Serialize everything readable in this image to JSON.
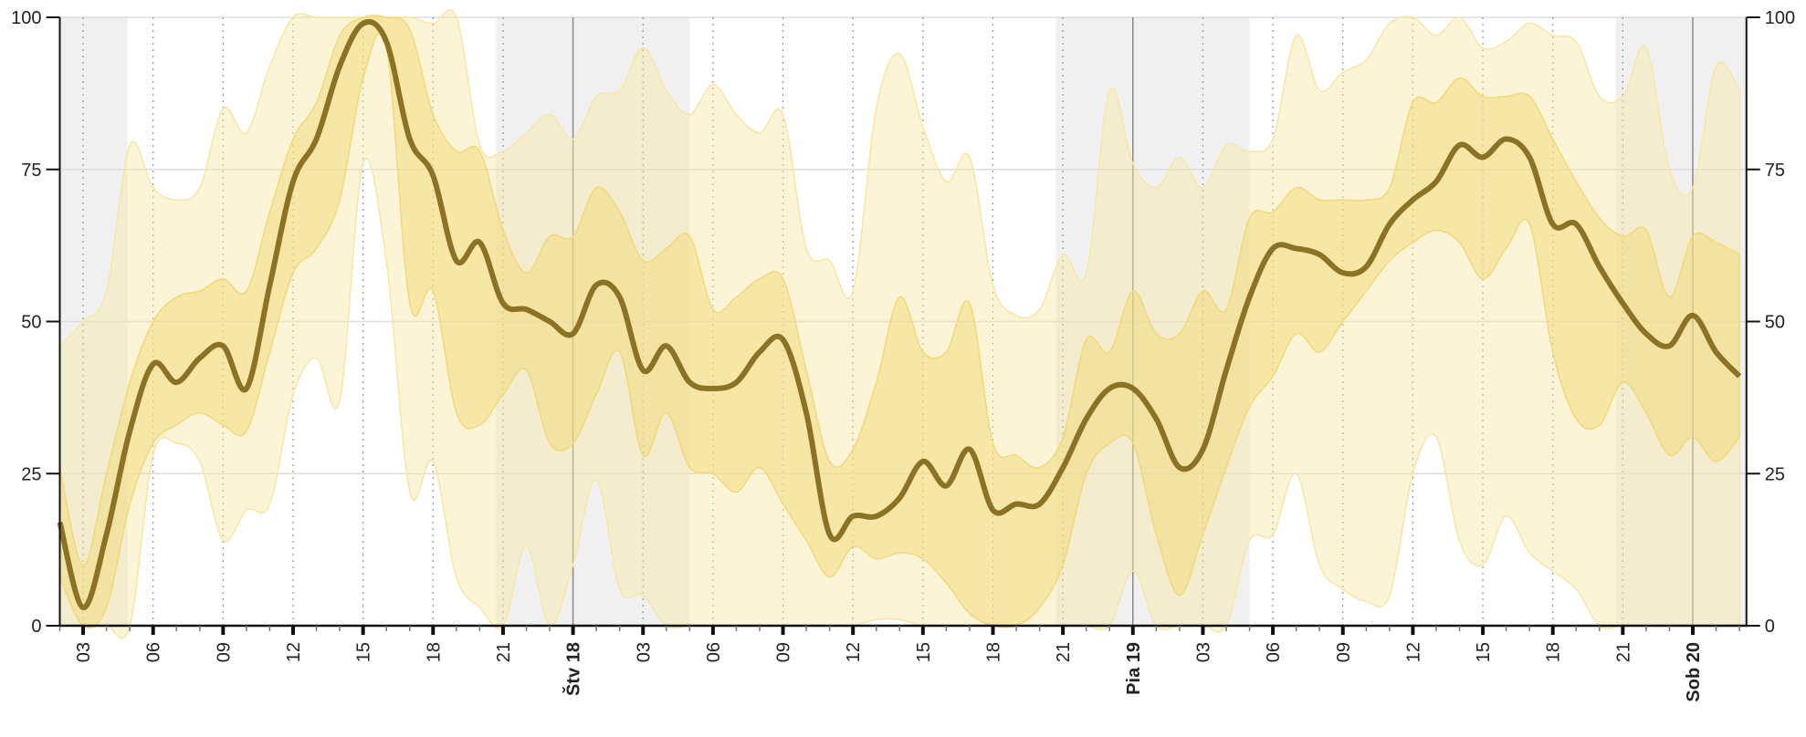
{
  "chart_data": {
    "type": "area",
    "title": "",
    "xlabel": "",
    "ylabel": "",
    "ylim": [
      0,
      100
    ],
    "yticks": [
      0,
      25,
      50,
      75,
      100
    ],
    "x_unit": "hours since 02:00 on day 17",
    "x_range": [
      0,
      72.3
    ],
    "hour_tick_labels": [
      {
        "h": 1,
        "label": "03"
      },
      {
        "h": 4,
        "label": "06"
      },
      {
        "h": 7,
        "label": "09"
      },
      {
        "h": 10,
        "label": "12"
      },
      {
        "h": 13,
        "label": "15"
      },
      {
        "h": 16,
        "label": "18"
      },
      {
        "h": 19,
        "label": "21"
      },
      {
        "h": 25,
        "label": "03"
      },
      {
        "h": 28,
        "label": "06"
      },
      {
        "h": 31,
        "label": "09"
      },
      {
        "h": 34,
        "label": "12"
      },
      {
        "h": 37,
        "label": "15"
      },
      {
        "h": 40,
        "label": "18"
      },
      {
        "h": 43,
        "label": "21"
      },
      {
        "h": 49,
        "label": "03"
      },
      {
        "h": 52,
        "label": "06"
      },
      {
        "h": 55,
        "label": "09"
      },
      {
        "h": 58,
        "label": "12"
      },
      {
        "h": 61,
        "label": "15"
      },
      {
        "h": 64,
        "label": "18"
      },
      {
        "h": 67,
        "label": "21"
      }
    ],
    "day_labels": [
      {
        "h": 22,
        "label": "Štv 18"
      },
      {
        "h": 46,
        "label": "Pia 19"
      },
      {
        "h": 70,
        "label": "Sob 20"
      }
    ],
    "night_periods": [
      [
        0,
        2.9
      ],
      [
        18.7,
        27
      ],
      [
        42.7,
        51
      ],
      [
        66.7,
        72.3
      ]
    ],
    "series": {
      "median": [
        17,
        3,
        15,
        32,
        43,
        40,
        44,
        46,
        39,
        56,
        73,
        80,
        92,
        99,
        96,
        80,
        74,
        60,
        63,
        53,
        52,
        50,
        48,
        56,
        54,
        42,
        46,
        40,
        39,
        40,
        45,
        47,
        35,
        15,
        18,
        18,
        21,
        27,
        23,
        29,
        19,
        20,
        20,
        26,
        34,
        39,
        39,
        34,
        26,
        29,
        42,
        54,
        62,
        62,
        61,
        58,
        59,
        66,
        70,
        73,
        79,
        77,
        80,
        77,
        66,
        66,
        59,
        53,
        48,
        46,
        51,
        45,
        41
      ],
      "inner_low": [
        8,
        0,
        3,
        20,
        30,
        33,
        35,
        33,
        32,
        45,
        58,
        62,
        70,
        90,
        95,
        53,
        55,
        35,
        33,
        38,
        42,
        30,
        30,
        38,
        45,
        28,
        35,
        26,
        25,
        22,
        26,
        20,
        14,
        8,
        13,
        11,
        12,
        11,
        7,
        2,
        0,
        0,
        3,
        10,
        25,
        30,
        30,
        15,
        5,
        15,
        26,
        36,
        41,
        48,
        45,
        50,
        55,
        60,
        63,
        65,
        63,
        57,
        62,
        66,
        45,
        34,
        33,
        40,
        35,
        28,
        31,
        27,
        31
      ],
      "inner_high": [
        26,
        10,
        25,
        40,
        50,
        54,
        55,
        57,
        55,
        68,
        80,
        86,
        97,
        100,
        100,
        98,
        84,
        78,
        78,
        65,
        58,
        64,
        64,
        72,
        68,
        60,
        62,
        64,
        52,
        54,
        57,
        57,
        42,
        27,
        29,
        40,
        54,
        45,
        45,
        53,
        30,
        28,
        26,
        31,
        47,
        45,
        55,
        48,
        48,
        55,
        52,
        67,
        68,
        72,
        70,
        70,
        70,
        72,
        86,
        86,
        90,
        87,
        87,
        87,
        80,
        73,
        67,
        64,
        65,
        54,
        64,
        63,
        61
      ],
      "outer_low": [
        0,
        0,
        0,
        0,
        28,
        30,
        27,
        14,
        19,
        20,
        38,
        44,
        37,
        76,
        60,
        22,
        27,
        8,
        3,
        0,
        13,
        0,
        10,
        24,
        6,
        5,
        0,
        0,
        0,
        0,
        0,
        0,
        0,
        0,
        0,
        1,
        1,
        0,
        0,
        0,
        0,
        0,
        0,
        0,
        0,
        0,
        9,
        0,
        0,
        0,
        0,
        14,
        15,
        25,
        10,
        6,
        4,
        5,
        25,
        31,
        14,
        10,
        18,
        12,
        9,
        6,
        0,
        0,
        0,
        0,
        0,
        0,
        0
      ],
      "outer_high": [
        46,
        50,
        55,
        79,
        72,
        70,
        72,
        85,
        81,
        92,
        100,
        100,
        100,
        100,
        100,
        100,
        99,
        100,
        79,
        78,
        81,
        84,
        80,
        87,
        88,
        95,
        88,
        84,
        89,
        84,
        81,
        84,
        62,
        60,
        55,
        85,
        94,
        82,
        73,
        77,
        56,
        51,
        52,
        61,
        58,
        88,
        76,
        72,
        77,
        72,
        79,
        78,
        80,
        97,
        88,
        91,
        93,
        99,
        100,
        97,
        100,
        95,
        96,
        99,
        97,
        96,
        87,
        87,
        95,
        75,
        72,
        92,
        88
      ]
    },
    "colors": {
      "median": "#8b7224",
      "inner_band": "#f2d978",
      "outer_band": "#f7e6a6",
      "night": "#f0f0f0",
      "grid": "#dddddd",
      "axis": "#111111"
    }
  }
}
